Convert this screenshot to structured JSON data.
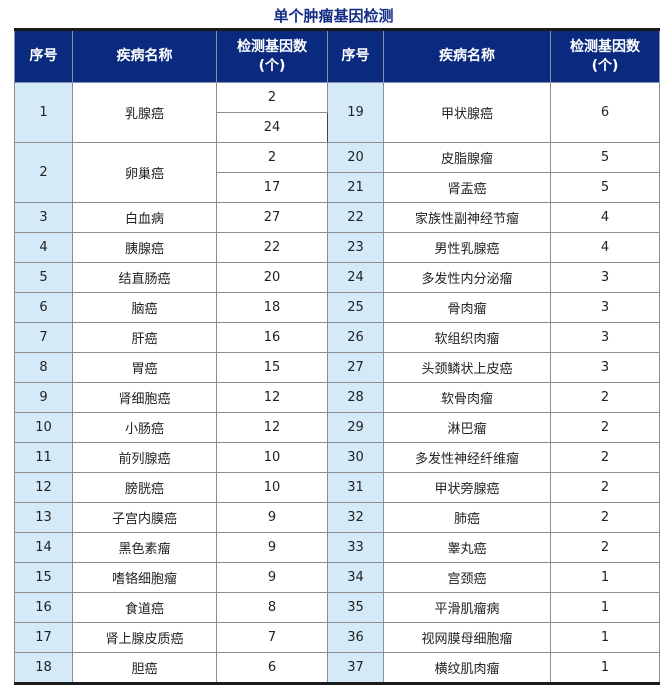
{
  "title": "单个肿瘤基因检测",
  "headers": {
    "seq": "序号",
    "disease": "疾病名称",
    "count_line1": "检测基因数",
    "count_line2": "(个)"
  },
  "colors": {
    "header_bg": "#0a2a80",
    "seq_bg": "#d4eaf8",
    "title": "#142e86"
  },
  "left": [
    {
      "seq": "1",
      "name": "乳腺癌",
      "counts": [
        "2",
        "24"
      ]
    },
    {
      "seq": "2",
      "name": "卵巢癌",
      "counts": [
        "2",
        "17"
      ]
    },
    {
      "seq": "3",
      "name": "白血病",
      "counts": [
        "27"
      ]
    },
    {
      "seq": "4",
      "name": "胰腺癌",
      "counts": [
        "22"
      ]
    },
    {
      "seq": "5",
      "name": "结直肠癌",
      "counts": [
        "20"
      ]
    },
    {
      "seq": "6",
      "name": "脑癌",
      "counts": [
        "18"
      ]
    },
    {
      "seq": "7",
      "name": "肝癌",
      "counts": [
        "16"
      ]
    },
    {
      "seq": "8",
      "name": "胃癌",
      "counts": [
        "15"
      ]
    },
    {
      "seq": "9",
      "name": "肾细胞癌",
      "counts": [
        "12"
      ]
    },
    {
      "seq": "10",
      "name": "小肠癌",
      "counts": [
        "12"
      ]
    },
    {
      "seq": "11",
      "name": "前列腺癌",
      "counts": [
        "10"
      ]
    },
    {
      "seq": "12",
      "name": "膀胱癌",
      "counts": [
        "10"
      ]
    },
    {
      "seq": "13",
      "name": "子宫内膜癌",
      "counts": [
        "9"
      ]
    },
    {
      "seq": "14",
      "name": "黑色素瘤",
      "counts": [
        "9"
      ]
    },
    {
      "seq": "15",
      "name": "嗜铬细胞瘤",
      "counts": [
        "9"
      ]
    },
    {
      "seq": "16",
      "name": "食道癌",
      "counts": [
        "8"
      ]
    },
    {
      "seq": "17",
      "name": "肾上腺皮质癌",
      "counts": [
        "7"
      ]
    },
    {
      "seq": "18",
      "name": "胆癌",
      "counts": [
        "6"
      ]
    }
  ],
  "right": [
    {
      "seq": "19",
      "name": "甲状腺癌",
      "count": "6"
    },
    {
      "seq": "20",
      "name": "皮脂腺瘤",
      "count": "5"
    },
    {
      "seq": "21",
      "name": "肾盂癌",
      "count": "5"
    },
    {
      "seq": "22",
      "name": "家族性副神经节瘤",
      "count": "4"
    },
    {
      "seq": "23",
      "name": "男性乳腺癌",
      "count": "4"
    },
    {
      "seq": "24",
      "name": "多发性内分泌瘤",
      "count": "3"
    },
    {
      "seq": "25",
      "name": "骨肉瘤",
      "count": "3"
    },
    {
      "seq": "26",
      "name": "软组织肉瘤",
      "count": "3"
    },
    {
      "seq": "27",
      "name": "头颈鳞状上皮癌",
      "count": "3"
    },
    {
      "seq": "28",
      "name": "软骨肉瘤",
      "count": "2"
    },
    {
      "seq": "29",
      "name": "淋巴瘤",
      "count": "2"
    },
    {
      "seq": "30",
      "name": "多发性神经纤维瘤",
      "count": "2"
    },
    {
      "seq": "31",
      "name": "甲状旁腺癌",
      "count": "2"
    },
    {
      "seq": "32",
      "name": "肺癌",
      "count": "2"
    },
    {
      "seq": "33",
      "name": "睾丸癌",
      "count": "2"
    },
    {
      "seq": "34",
      "name": "宫颈癌",
      "count": "1"
    },
    {
      "seq": "35",
      "name": "平滑肌瘤病",
      "count": "1"
    },
    {
      "seq": "36",
      "name": "视网膜母细胞瘤",
      "count": "1"
    },
    {
      "seq": "37",
      "name": "横纹肌肉瘤",
      "count": "1"
    }
  ]
}
